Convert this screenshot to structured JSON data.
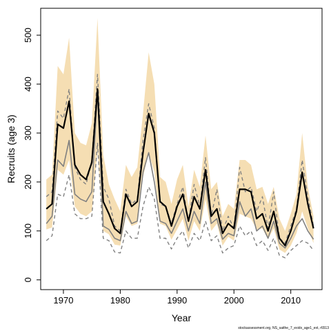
{
  "chart_data": {
    "type": "line",
    "title": "",
    "xlabel": "Year",
    "ylabel": "Recruits (age 3)",
    "xlim": [
      1966,
      2015.5
    ],
    "ylim": [
      -20,
      555
    ],
    "xticks": [
      1970,
      1980,
      1990,
      2000,
      2010
    ],
    "yticks": [
      0,
      100,
      200,
      300,
      400,
      500
    ],
    "grid": false,
    "legend": "none",
    "colors": {
      "band": "#f5deb3",
      "main": "#000000",
      "secondary": "#808080",
      "dashed": "#808080"
    },
    "x": [
      1967,
      1968,
      1969,
      1970,
      1971,
      1972,
      1973,
      1974,
      1975,
      1976,
      1977,
      1978,
      1979,
      1980,
      1981,
      1982,
      1983,
      1984,
      1985,
      1986,
      1987,
      1988,
      1989,
      1990,
      1991,
      1992,
      1993,
      1994,
      1995,
      1996,
      1997,
      1998,
      1999,
      2000,
      2001,
      2002,
      2003,
      2004,
      2005,
      2006,
      2007,
      2008,
      2009,
      2010,
      2011,
      2012,
      2013,
      2014
    ],
    "series": [
      {
        "role": "band-upper",
        "values": [
          205,
          215,
          437,
          420,
          495,
          300,
          280,
          275,
          320,
          535,
          255,
          195,
          165,
          140,
          235,
          210,
          230,
          340,
          465,
          400,
          210,
          200,
          155,
          205,
          235,
          150,
          225,
          190,
          295,
          185,
          200,
          130,
          155,
          145,
          245,
          245,
          235,
          185,
          190,
          155,
          190,
          125,
          100,
          135,
          175,
          300,
          190,
          130
        ]
      },
      {
        "role": "band-lower",
        "values": [
          103,
          107,
          225,
          215,
          245,
          150,
          135,
          130,
          140,
          265,
          100,
          93,
          72,
          70,
          130,
          110,
          115,
          210,
          260,
          220,
          115,
          110,
          82,
          103,
          125,
          80,
          120,
          100,
          165,
          100,
          115,
          70,
          88,
          80,
          135,
          130,
          125,
          103,
          105,
          83,
          105,
          62,
          55,
          70,
          95,
          140,
          105,
          75
        ]
      },
      {
        "role": "main",
        "values": [
          145,
          155,
          318,
          310,
          365,
          235,
          215,
          205,
          240,
          390,
          160,
          135,
          105,
          95,
          175,
          150,
          160,
          260,
          340,
          300,
          160,
          150,
          110,
          150,
          175,
          120,
          170,
          145,
          225,
          130,
          145,
          95,
          115,
          105,
          185,
          185,
          180,
          125,
          135,
          100,
          140,
          85,
          70,
          100,
          140,
          220,
          155,
          105
        ]
      },
      {
        "role": "secondary",
        "values": [
          115,
          130,
          245,
          232,
          285,
          175,
          165,
          160,
          180,
          385,
          110,
          103,
          85,
          80,
          140,
          115,
          120,
          220,
          260,
          200,
          120,
          115,
          95,
          120,
          145,
          100,
          140,
          115,
          200,
          115,
          125,
          83,
          95,
          90,
          160,
          130,
          145,
          100,
          110,
          85,
          120,
          75,
          65,
          85,
          110,
          125,
          100,
          83
        ]
      },
      {
        "role": "dashed-upper",
        "values": [
          170,
          180,
          345,
          330,
          390,
          230,
          205,
          195,
          245,
          420,
          190,
          165,
          110,
          100,
          185,
          155,
          165,
          285,
          360,
          310,
          155,
          150,
          115,
          155,
          190,
          120,
          195,
          150,
          250,
          130,
          185,
          100,
          130,
          105,
          230,
          180,
          190,
          140,
          170,
          105,
          180,
          85,
          75,
          110,
          145,
          245,
          170,
          110
        ]
      },
      {
        "role": "dashed-lower",
        "values": [
          80,
          90,
          175,
          170,
          215,
          135,
          125,
          125,
          130,
          280,
          85,
          80,
          57,
          55,
          100,
          85,
          85,
          150,
          190,
          165,
          85,
          85,
          63,
          85,
          100,
          65,
          95,
          80,
          120,
          80,
          90,
          55,
          65,
          70,
          110,
          90,
          100,
          70,
          80,
          60,
          85,
          50,
          45,
          60,
          70,
          80,
          75,
          60
        ]
      }
    ],
    "source_note": "stockassessment.org, NS_saithe_7_exidx_age1_ext, r6513"
  }
}
